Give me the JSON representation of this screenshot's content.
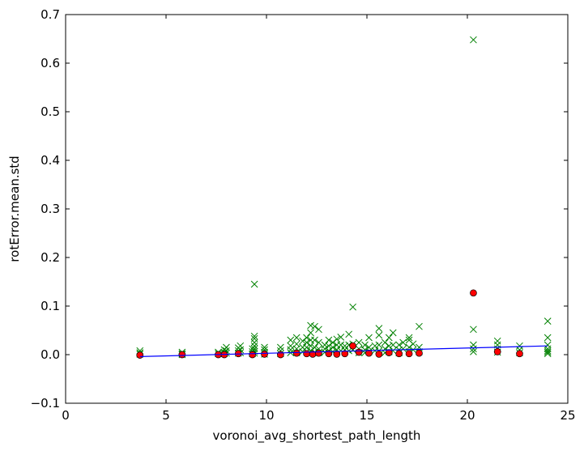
{
  "chart_data": {
    "type": "scatter",
    "xlabel": "voronoi_avg_shortest_path_length",
    "ylabel": "rotError.mean.std",
    "xlim": [
      0,
      25
    ],
    "ylim": [
      -0.1,
      0.7
    ],
    "xticks": [
      0,
      5,
      10,
      15,
      20,
      25
    ],
    "xtick_labels": [
      "0",
      "5",
      "10",
      "15",
      "20",
      "25"
    ],
    "yticks": [
      -0.1,
      0.0,
      0.1,
      0.2,
      0.3,
      0.4,
      0.5,
      0.6,
      0.7
    ],
    "ytick_labels": [
      "−0.1",
      "0.0",
      "0.1",
      "0.2",
      "0.3",
      "0.4",
      "0.5",
      "0.6",
      "0.7"
    ],
    "grid": false,
    "colors": {
      "x_markers": "#008000",
      "circles": "#ff0000",
      "fit_line": "#0000ff"
    },
    "series": [
      {
        "marker": "x",
        "color": "#008000",
        "points": [
          [
            3.7,
            0.008
          ],
          [
            3.7,
            0.004
          ],
          [
            3.7,
            0.001
          ],
          [
            5.8,
            0.005
          ],
          [
            5.8,
            0.002
          ],
          [
            5.8,
            0.0
          ],
          [
            7.6,
            0.005
          ],
          [
            7.6,
            0.002
          ],
          [
            7.9,
            0.01
          ],
          [
            7.9,
            0.005
          ],
          [
            7.9,
            0.002
          ],
          [
            8.0,
            0.015
          ],
          [
            8.0,
            0.008
          ],
          [
            8.0,
            0.003
          ],
          [
            8.6,
            0.014
          ],
          [
            8.6,
            0.008
          ],
          [
            8.6,
            0.003
          ],
          [
            8.7,
            0.018
          ],
          [
            8.7,
            0.01
          ],
          [
            8.7,
            0.004
          ],
          [
            9.3,
            0.012
          ],
          [
            9.3,
            0.006
          ],
          [
            9.3,
            0.002
          ],
          [
            9.4,
            0.145
          ],
          [
            9.4,
            0.038
          ],
          [
            9.4,
            0.033
          ],
          [
            9.4,
            0.025
          ],
          [
            9.4,
            0.018
          ],
          [
            9.4,
            0.012
          ],
          [
            9.4,
            0.007
          ],
          [
            9.4,
            0.003
          ],
          [
            9.9,
            0.015
          ],
          [
            9.9,
            0.01
          ],
          [
            9.9,
            0.005
          ],
          [
            9.9,
            0.001
          ],
          [
            10.7,
            0.015
          ],
          [
            10.7,
            0.008
          ],
          [
            10.7,
            0.002
          ],
          [
            11.2,
            0.03
          ],
          [
            11.2,
            0.018
          ],
          [
            11.2,
            0.01
          ],
          [
            11.2,
            0.004
          ],
          [
            11.5,
            0.035
          ],
          [
            11.5,
            0.022
          ],
          [
            11.5,
            0.012
          ],
          [
            11.5,
            0.004
          ],
          [
            11.8,
            0.028
          ],
          [
            11.8,
            0.015
          ],
          [
            11.8,
            0.006
          ],
          [
            12.0,
            0.035
          ],
          [
            12.0,
            0.025
          ],
          [
            12.0,
            0.015
          ],
          [
            12.0,
            0.006
          ],
          [
            12.2,
            0.06
          ],
          [
            12.2,
            0.045
          ],
          [
            12.2,
            0.03
          ],
          [
            12.2,
            0.018
          ],
          [
            12.2,
            0.008
          ],
          [
            12.4,
            0.058
          ],
          [
            12.4,
            0.03
          ],
          [
            12.4,
            0.015
          ],
          [
            12.4,
            0.005
          ],
          [
            12.6,
            0.052
          ],
          [
            12.6,
            0.025
          ],
          [
            12.6,
            0.012
          ],
          [
            12.6,
            0.004
          ],
          [
            12.9,
            0.02
          ],
          [
            12.9,
            0.012
          ],
          [
            12.9,
            0.005
          ],
          [
            13.1,
            0.03
          ],
          [
            13.1,
            0.018
          ],
          [
            13.1,
            0.008
          ],
          [
            13.3,
            0.025
          ],
          [
            13.3,
            0.015
          ],
          [
            13.3,
            0.006
          ],
          [
            13.5,
            0.032
          ],
          [
            13.5,
            0.02
          ],
          [
            13.5,
            0.01
          ],
          [
            13.7,
            0.036
          ],
          [
            13.7,
            0.02
          ],
          [
            13.7,
            0.008
          ],
          [
            13.9,
            0.018
          ],
          [
            13.9,
            0.01
          ],
          [
            14.1,
            0.042
          ],
          [
            14.1,
            0.02
          ],
          [
            14.1,
            0.008
          ],
          [
            14.3,
            0.098
          ],
          [
            14.3,
            0.022
          ],
          [
            14.3,
            0.01
          ],
          [
            14.6,
            0.025
          ],
          [
            14.6,
            0.012
          ],
          [
            14.6,
            0.004
          ],
          [
            14.9,
            0.02
          ],
          [
            14.9,
            0.01
          ],
          [
            14.9,
            0.004
          ],
          [
            15.1,
            0.035
          ],
          [
            15.1,
            0.015
          ],
          [
            15.1,
            0.006
          ],
          [
            15.4,
            0.018
          ],
          [
            15.4,
            0.008
          ],
          [
            15.6,
            0.054
          ],
          [
            15.6,
            0.04
          ],
          [
            15.6,
            0.02
          ],
          [
            15.6,
            0.008
          ],
          [
            15.9,
            0.025
          ],
          [
            15.9,
            0.012
          ],
          [
            15.9,
            0.004
          ],
          [
            16.1,
            0.035
          ],
          [
            16.1,
            0.018
          ],
          [
            16.1,
            0.006
          ],
          [
            16.3,
            0.045
          ],
          [
            16.3,
            0.02
          ],
          [
            16.3,
            0.008
          ],
          [
            16.6,
            0.02
          ],
          [
            16.6,
            0.01
          ],
          [
            16.6,
            0.004
          ],
          [
            16.8,
            0.025
          ],
          [
            16.8,
            0.012
          ],
          [
            17.1,
            0.035
          ],
          [
            17.1,
            0.03
          ],
          [
            17.1,
            0.015
          ],
          [
            17.1,
            0.006
          ],
          [
            17.3,
            0.022
          ],
          [
            17.3,
            0.01
          ],
          [
            17.6,
            0.058
          ],
          [
            17.6,
            0.015
          ],
          [
            17.6,
            0.006
          ],
          [
            20.3,
            0.648
          ],
          [
            20.3,
            0.052
          ],
          [
            20.3,
            0.02
          ],
          [
            20.3,
            0.012
          ],
          [
            20.3,
            0.006
          ],
          [
            21.5,
            0.028
          ],
          [
            21.5,
            0.02
          ],
          [
            21.5,
            0.012
          ],
          [
            21.5,
            0.005
          ],
          [
            22.6,
            0.018
          ],
          [
            22.6,
            0.01
          ],
          [
            22.6,
            0.004
          ],
          [
            24.0,
            0.069
          ],
          [
            24.0,
            0.035
          ],
          [
            24.0,
            0.02
          ],
          [
            24.0,
            0.012
          ],
          [
            24.0,
            0.008
          ],
          [
            24.0,
            0.005
          ],
          [
            24.0,
            0.002
          ]
        ]
      },
      {
        "marker": "o",
        "color": "#ff0000",
        "points": [
          [
            3.7,
            -0.001
          ],
          [
            5.8,
            0.0
          ],
          [
            7.6,
            0.0
          ],
          [
            7.9,
            0.0
          ],
          [
            8.6,
            0.002
          ],
          [
            9.3,
            0.0
          ],
          [
            9.9,
            0.001
          ],
          [
            10.7,
            0.0
          ],
          [
            11.5,
            0.003
          ],
          [
            12.0,
            0.002
          ],
          [
            12.3,
            0.001
          ],
          [
            12.6,
            0.003
          ],
          [
            13.1,
            0.002
          ],
          [
            13.5,
            0.001
          ],
          [
            13.9,
            0.002
          ],
          [
            14.3,
            0.018
          ],
          [
            14.6,
            0.005
          ],
          [
            15.1,
            0.003
          ],
          [
            15.6,
            0.001
          ],
          [
            16.1,
            0.004
          ],
          [
            16.6,
            0.002
          ],
          [
            17.1,
            0.002
          ],
          [
            17.6,
            0.003
          ],
          [
            20.3,
            0.127
          ],
          [
            21.5,
            0.006
          ],
          [
            22.6,
            0.002
          ]
        ]
      },
      {
        "marker": "line",
        "color": "#0000ff",
        "points": [
          [
            3.7,
            -0.004
          ],
          [
            24.0,
            0.018
          ]
        ]
      }
    ]
  }
}
